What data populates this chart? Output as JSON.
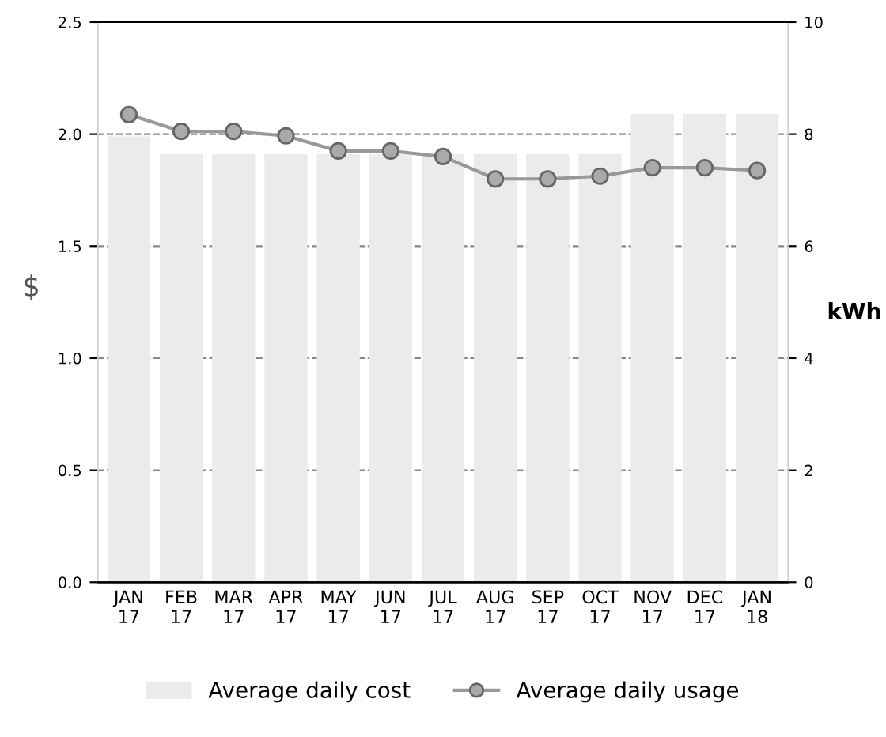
{
  "chart_data": {
    "type": "bar",
    "categories": [
      "JAN\n17",
      "FEB\n17",
      "MAR\n17",
      "APR\n17",
      "MAY\n17",
      "JUN\n17",
      "JUL\n17",
      "AUG\n17",
      "SEP\n17",
      "OCT\n17",
      "NOV\n17",
      "DEC\n17",
      "JAN\n18"
    ],
    "ylabel": "$",
    "y2label": "kWh",
    "series": [
      {
        "name": "Average daily cost",
        "color": "#ebebeb",
        "values": [
          1.99,
          1.91,
          1.91,
          1.91,
          1.91,
          1.91,
          1.91,
          1.91,
          1.91,
          1.91,
          2.09,
          2.09,
          2.09
        ]
      },
      {
        "name": "Average daily usage",
        "type": "line",
        "axis": "y2",
        "color": "#999999",
        "marker": "circle",
        "line_style": "solid",
        "values": [
          8.35,
          8.05,
          8.05,
          7.97,
          7.7,
          7.7,
          7.6,
          7.2,
          7.2,
          7.25,
          7.4,
          7.4,
          7.35
        ]
      }
    ],
    "ylim": [
      0,
      2.5
    ],
    "yticks": [
      {
        "value": 0,
        "label": "0.0"
      },
      0.5,
      {
        "value": 1,
        "label": "1.0"
      },
      1.5,
      {
        "value": 2,
        "label": "2.0"
      },
      2.5
    ],
    "y2lim": [
      0,
      10
    ],
    "y2ticks": [
      0,
      2,
      4,
      6,
      8,
      10
    ],
    "grid": "y",
    "legend": "bottom"
  }
}
